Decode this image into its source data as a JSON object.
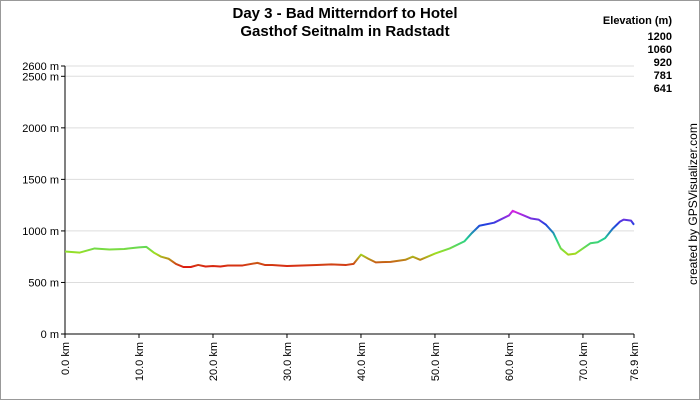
{
  "chart_data": {
    "type": "line",
    "title": [
      "Day 3 - Bad Mitterndorf to Hotel",
      "Gasthof Seitnalm in Radstadt"
    ],
    "credit": "created by GPSVisualizer.com",
    "legend_title": "Elevation (m)",
    "legend": [
      {
        "value": 1200,
        "color": "#e020e0"
      },
      {
        "value": 1060,
        "color": "#2040e0"
      },
      {
        "value": 920,
        "color": "#20d090"
      },
      {
        "value": 781,
        "color": "#a0e020"
      },
      {
        "value": 641,
        "color": "#e01010"
      }
    ],
    "x": [
      0,
      2,
      4,
      6,
      8,
      10,
      11,
      12,
      13,
      14,
      15,
      16,
      17,
      18,
      19,
      20,
      21,
      22,
      24,
      26,
      27,
      28,
      30,
      32,
      34,
      36,
      38,
      39,
      40,
      41,
      42,
      44,
      46,
      47,
      48,
      50,
      52,
      54,
      55,
      56,
      58,
      60,
      60.5,
      61,
      62,
      63,
      64,
      65,
      66,
      67,
      68,
      69,
      70,
      71,
      72,
      73,
      74,
      75,
      75.5,
      76.5,
      76.9
    ],
    "values": [
      800,
      790,
      830,
      820,
      825,
      840,
      845,
      790,
      750,
      730,
      680,
      650,
      650,
      670,
      655,
      660,
      655,
      665,
      665,
      690,
      670,
      670,
      660,
      665,
      670,
      675,
      670,
      680,
      770,
      730,
      695,
      700,
      720,
      750,
      720,
      780,
      830,
      900,
      980,
      1050,
      1080,
      1150,
      1195,
      1180,
      1150,
      1120,
      1110,
      1060,
      980,
      830,
      770,
      780,
      830,
      880,
      890,
      930,
      1020,
      1090,
      1110,
      1100,
      1060
    ],
    "xlim": [
      0,
      76.9
    ],
    "xticks": [
      {
        "value": 0,
        "label": "0.0 km"
      },
      {
        "value": 10,
        "label": "10.0 km"
      },
      {
        "value": 20,
        "label": "20.0 km"
      },
      {
        "value": 30,
        "label": "30.0 km"
      },
      {
        "value": 40,
        "label": "40.0 km"
      },
      {
        "value": 50,
        "label": "50.0 km"
      },
      {
        "value": 60,
        "label": "60.0 km"
      },
      {
        "value": 70,
        "label": "70.0 km"
      },
      {
        "value": 76.9,
        "label": "76.9 km"
      }
    ],
    "ylim": [
      0,
      2600
    ],
    "yticks": [
      {
        "value": 0,
        "label": "0 m"
      },
      {
        "value": 500,
        "label": "500 m"
      },
      {
        "value": 1000,
        "label": "1000 m"
      },
      {
        "value": 1500,
        "label": "1500 m"
      },
      {
        "value": 2000,
        "label": "2000 m"
      },
      {
        "value": 2500,
        "label": "2500 m"
      },
      {
        "value": 2600,
        "label": "2600 m"
      }
    ],
    "grid": true
  }
}
